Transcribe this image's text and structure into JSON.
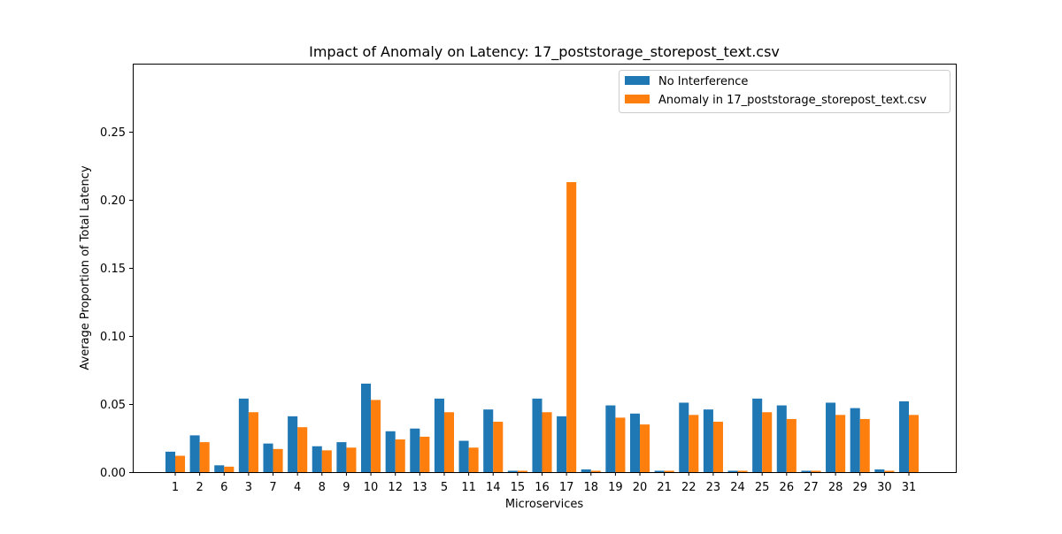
{
  "chart_data": {
    "type": "bar",
    "title": "Impact of Anomaly on Latency: 17_poststorage_storepost_text.csv",
    "xlabel": "Microservices",
    "ylabel": "Average Proportion of Total Latency",
    "ylim": [
      0,
      0.3
    ],
    "yticks": [
      "0.00",
      "0.05",
      "0.10",
      "0.15",
      "0.20",
      "0.25"
    ],
    "grid": false,
    "legend_position": "top-right",
    "categories": [
      "1",
      "2",
      "6",
      "3",
      "7",
      "4",
      "8",
      "9",
      "10",
      "12",
      "13",
      "5",
      "11",
      "14",
      "15",
      "16",
      "17",
      "18",
      "19",
      "20",
      "21",
      "22",
      "23",
      "24",
      "25",
      "26",
      "27",
      "28",
      "29",
      "30",
      "31"
    ],
    "series": [
      {
        "name": "No Interference",
        "color": "#1f77b4",
        "values": [
          0.015,
          0.027,
          0.005,
          0.054,
          0.021,
          0.041,
          0.019,
          0.022,
          0.065,
          0.03,
          0.032,
          0.054,
          0.023,
          0.046,
          0.001,
          0.054,
          0.041,
          0.002,
          0.049,
          0.043,
          0.001,
          0.051,
          0.046,
          0.001,
          0.054,
          0.049,
          0.001,
          0.051,
          0.047,
          0.002,
          0.052
        ]
      },
      {
        "name": "Anomaly in 17_poststorage_storepost_text.csv",
        "color": "#ff7f0e",
        "values": [
          0.012,
          0.022,
          0.004,
          0.044,
          0.017,
          0.033,
          0.016,
          0.018,
          0.053,
          0.024,
          0.026,
          0.044,
          0.018,
          0.037,
          0.001,
          0.044,
          0.213,
          0.001,
          0.04,
          0.035,
          0.001,
          0.042,
          0.037,
          0.001,
          0.044,
          0.039,
          0.001,
          0.042,
          0.039,
          0.001,
          0.042
        ]
      }
    ]
  }
}
